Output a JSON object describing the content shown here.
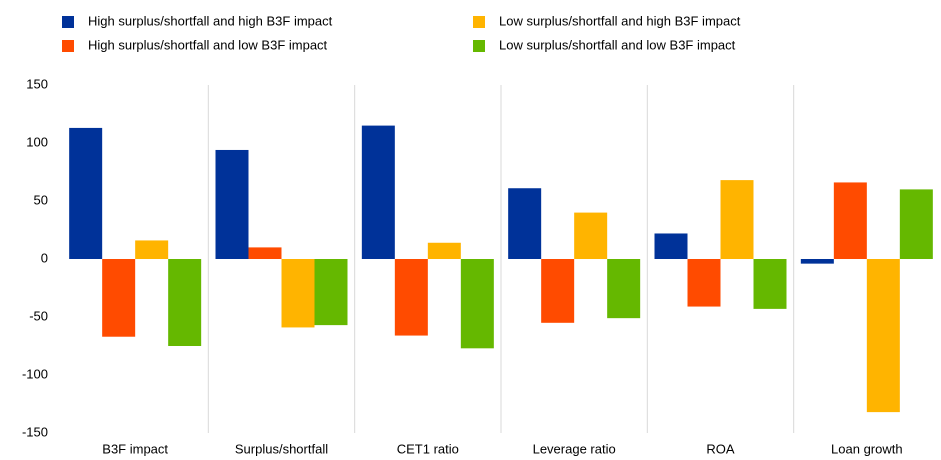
{
  "chart_data": {
    "type": "bar",
    "categories": [
      "B3F impact",
      "Surplus/shortfall",
      "CET1 ratio",
      "Leverage ratio",
      "ROA",
      "Loan growth"
    ],
    "series": [
      {
        "name": "High surplus/shortfall and high B3F impact",
        "color": "#003299",
        "values": [
          113,
          94,
          115,
          61,
          22,
          -4
        ]
      },
      {
        "name": "High surplus/shortfall and low B3F impact",
        "color": "#ff4b00",
        "values": [
          -67,
          10,
          -66,
          -55,
          -41,
          66
        ]
      },
      {
        "name": "Low surplus/shortfall and high B3F impact",
        "color": "#ffb400",
        "values": [
          16,
          -59,
          14,
          40,
          68,
          -132
        ]
      },
      {
        "name": "Low surplus/shortfall and low B3F impact",
        "color": "#65b800",
        "values": [
          -75,
          -57,
          -77,
          -51,
          -43,
          60
        ]
      }
    ],
    "ylim": [
      -150,
      150
    ],
    "yticks": [
      -150,
      -100,
      -50,
      0,
      50,
      100,
      150
    ]
  }
}
